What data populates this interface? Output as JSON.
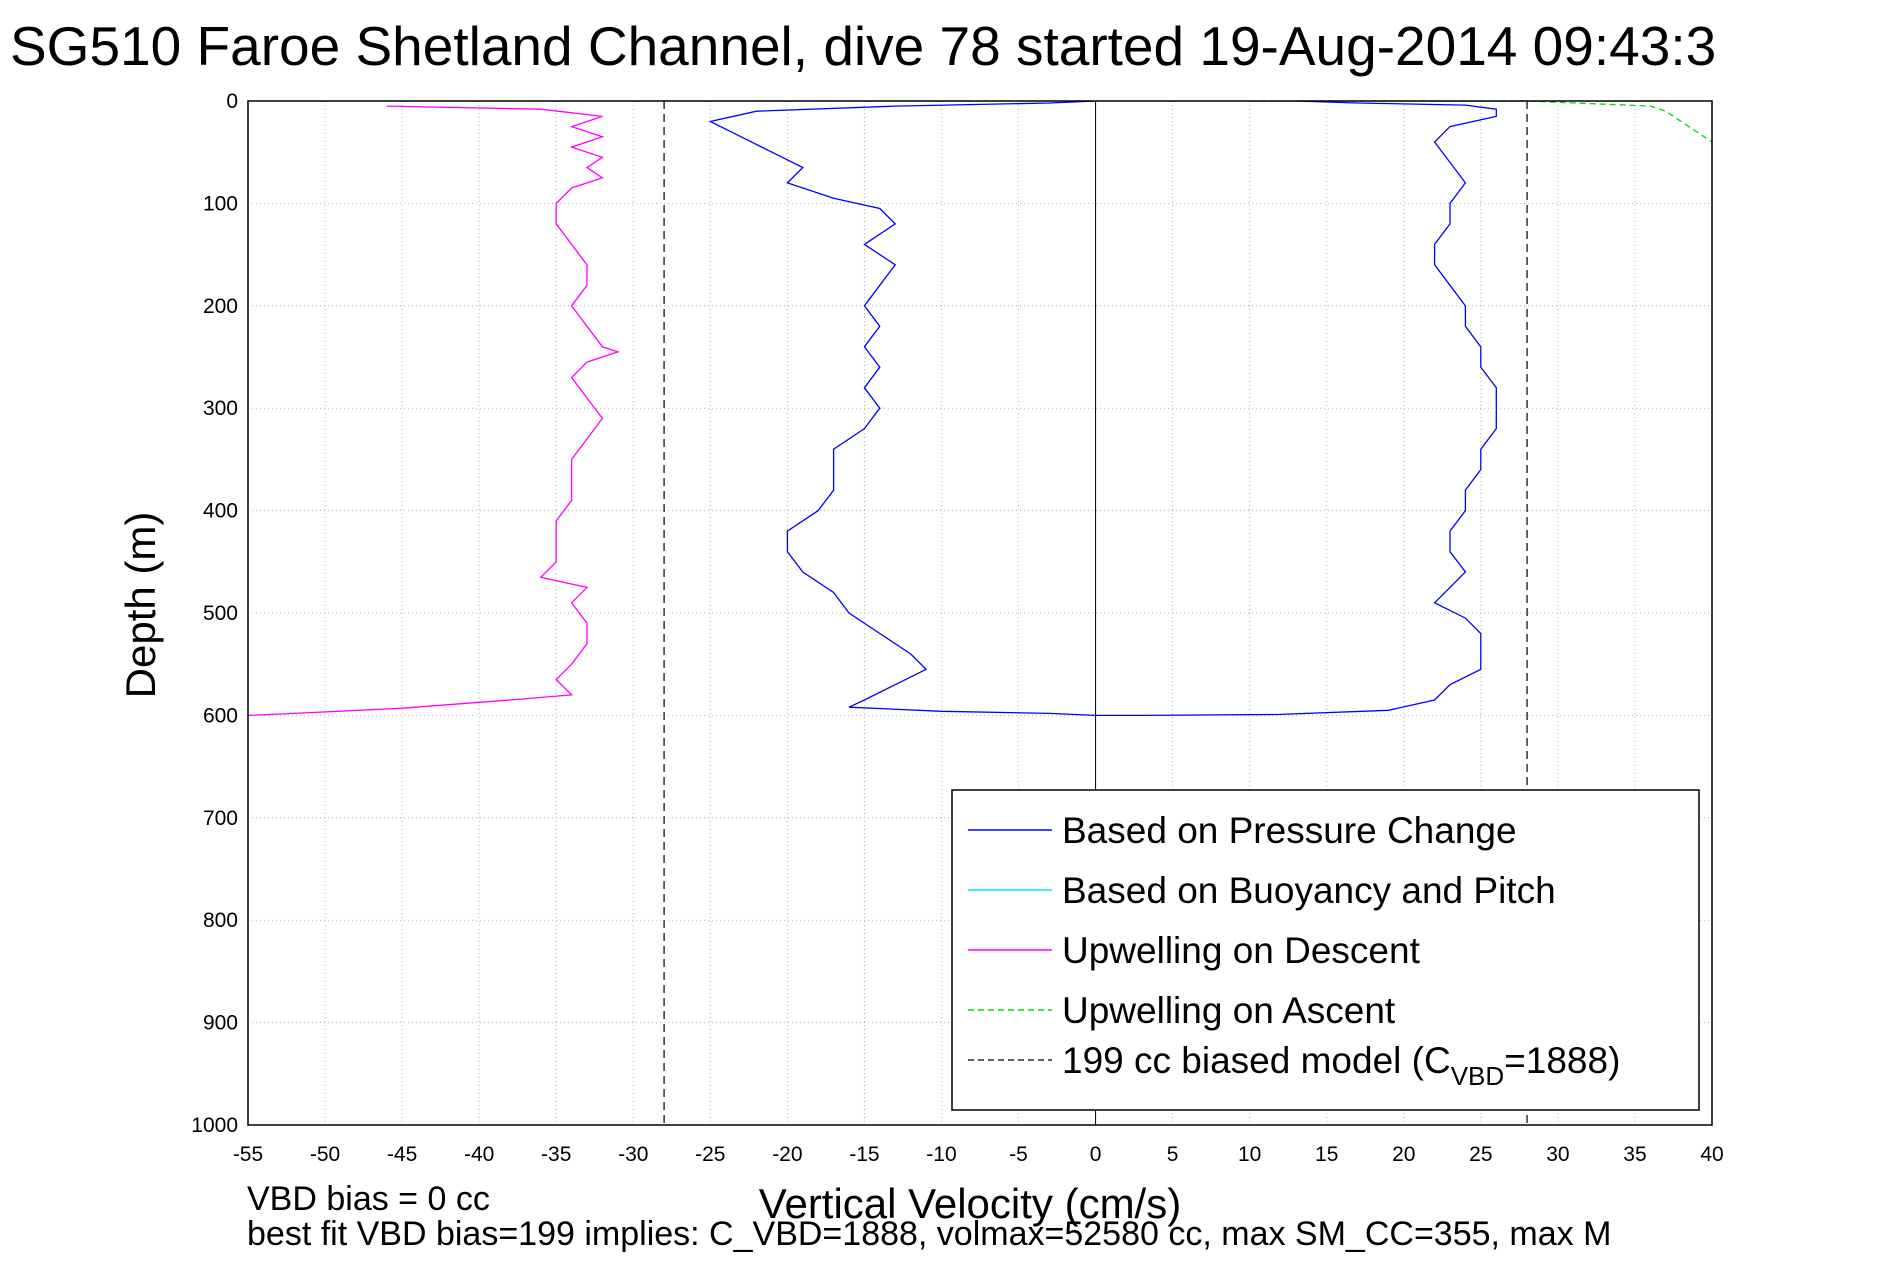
{
  "chart_data": {
    "type": "line",
    "title": "SG510 Faroe Shetland Channel, dive 78 started 19-Aug-2014 09:43:3",
    "xlabel": "Vertical Velocity (cm/s)",
    "ylabel": "Depth (m)",
    "xlim": [
      -55,
      40
    ],
    "ylim": [
      0,
      1000
    ],
    "y_reversed": true,
    "grid": true,
    "xticks": [
      -55,
      -50,
      -45,
      -40,
      -35,
      -30,
      -25,
      -20,
      -15,
      -10,
      -5,
      0,
      5,
      10,
      15,
      20,
      25,
      30,
      35,
      40
    ],
    "yticks": [
      0,
      100,
      200,
      300,
      400,
      500,
      600,
      700,
      800,
      900,
      1000
    ],
    "legend_position": "bottom-right",
    "legend": [
      {
        "label": "Based on Pressure Change",
        "color": "#0000ff",
        "style": "solid"
      },
      {
        "label": "Based on Buoyancy and Pitch",
        "color": "#00e5ee",
        "style": "solid"
      },
      {
        "label": "Upwelling on Descent",
        "color": "#ff00ff",
        "style": "solid"
      },
      {
        "label": "Upwelling on Ascent",
        "color": "#00dd00",
        "style": "dashed"
      }
    ],
    "legend_model": {
      "prefix": "199 cc biased model (C",
      "sub": "VBD",
      "suffix": "=1888)",
      "color": "#000000",
      "style": "dashed"
    },
    "series": [
      {
        "name": "Based on Pressure Change",
        "color": "#0000ff",
        "points": [
          [
            0,
            0
          ],
          [
            -3,
            2
          ],
          [
            -13,
            5
          ],
          [
            -22,
            10
          ],
          [
            -25,
            20
          ],
          [
            -23,
            35
          ],
          [
            -21,
            50
          ],
          [
            -19,
            65
          ],
          [
            -20,
            80
          ],
          [
            -17,
            95
          ],
          [
            -14,
            105
          ],
          [
            -13,
            120
          ],
          [
            -15,
            140
          ],
          [
            -13,
            160
          ],
          [
            -14,
            180
          ],
          [
            -15,
            200
          ],
          [
            -14,
            220
          ],
          [
            -15,
            240
          ],
          [
            -14,
            260
          ],
          [
            -15,
            280
          ],
          [
            -14,
            300
          ],
          [
            -15,
            320
          ],
          [
            -17,
            340
          ],
          [
            -17,
            360
          ],
          [
            -17,
            380
          ],
          [
            -18,
            400
          ],
          [
            -20,
            420
          ],
          [
            -20,
            440
          ],
          [
            -19,
            460
          ],
          [
            -17,
            480
          ],
          [
            -16,
            500
          ],
          [
            -14,
            520
          ],
          [
            -12,
            540
          ],
          [
            -11,
            555
          ],
          [
            -13,
            570
          ],
          [
            -15,
            585
          ],
          [
            -16,
            592
          ],
          [
            -10,
            596
          ],
          [
            -3,
            598
          ],
          [
            0,
            600
          ]
        ]
      },
      {
        "name": "Based on Pressure Change (ascent)",
        "color": "#0000ff",
        "points": [
          [
            0,
            600
          ],
          [
            3,
            600
          ],
          [
            12,
            599
          ],
          [
            19,
            595
          ],
          [
            22,
            585
          ],
          [
            23,
            570
          ],
          [
            25,
            555
          ],
          [
            25,
            540
          ],
          [
            25,
            520
          ],
          [
            24,
            505
          ],
          [
            22,
            490
          ],
          [
            23,
            475
          ],
          [
            24,
            460
          ],
          [
            23,
            440
          ],
          [
            23,
            420
          ],
          [
            24,
            400
          ],
          [
            24,
            380
          ],
          [
            25,
            360
          ],
          [
            25,
            340
          ],
          [
            26,
            320
          ],
          [
            26,
            300
          ],
          [
            26,
            280
          ],
          [
            25,
            260
          ],
          [
            25,
            240
          ],
          [
            24,
            220
          ],
          [
            24,
            200
          ],
          [
            23,
            180
          ],
          [
            22,
            160
          ],
          [
            22,
            140
          ],
          [
            23,
            120
          ],
          [
            23,
            100
          ],
          [
            24,
            80
          ],
          [
            23,
            60
          ],
          [
            22,
            40
          ],
          [
            23,
            25
          ],
          [
            26,
            15
          ],
          [
            26,
            8
          ],
          [
            24,
            4
          ],
          [
            17,
            2
          ],
          [
            13,
            0
          ]
        ]
      },
      {
        "name": "Upwelling on Descent",
        "color": "#ff00ff",
        "points": [
          [
            -46,
            5
          ],
          [
            -36,
            8
          ],
          [
            -32,
            15
          ],
          [
            -34,
            25
          ],
          [
            -32,
            35
          ],
          [
            -34,
            45
          ],
          [
            -32,
            55
          ],
          [
            -33,
            65
          ],
          [
            -32,
            75
          ],
          [
            -34,
            85
          ],
          [
            -35,
            100
          ],
          [
            -35,
            120
          ],
          [
            -34,
            140
          ],
          [
            -33,
            160
          ],
          [
            -33,
            180
          ],
          [
            -34,
            200
          ],
          [
            -33,
            220
          ],
          [
            -32,
            240
          ],
          [
            -31,
            245
          ],
          [
            -33,
            255
          ],
          [
            -34,
            270
          ],
          [
            -33,
            290
          ],
          [
            -32,
            310
          ],
          [
            -33,
            330
          ],
          [
            -34,
            350
          ],
          [
            -34,
            370
          ],
          [
            -34,
            390
          ],
          [
            -35,
            410
          ],
          [
            -35,
            430
          ],
          [
            -35,
            450
          ],
          [
            -36,
            465
          ],
          [
            -33,
            475
          ],
          [
            -34,
            490
          ],
          [
            -33,
            510
          ],
          [
            -33,
            530
          ],
          [
            -34,
            550
          ],
          [
            -35,
            565
          ],
          [
            -34,
            580
          ],
          [
            -38,
            585
          ],
          [
            -45,
            593
          ],
          [
            -52,
            598
          ],
          [
            -55,
            600
          ]
        ]
      },
      {
        "name": "Upwelling on Ascent",
        "color": "#00dd00",
        "points": [
          [
            10,
            0
          ],
          [
            28,
            0
          ],
          [
            36,
            5
          ],
          [
            37,
            10
          ],
          [
            38,
            20
          ],
          [
            40,
            40
          ],
          [
            40,
            60
          ]
        ]
      }
    ],
    "model_lines_x": [
      -28,
      28
    ]
  },
  "footer": {
    "line1": "VBD bias = 0 cc",
    "line2": "best fit VBD bias=199 implies: C_VBD=1888, volmax=52580 cc, max SM_CC=355, max M"
  }
}
